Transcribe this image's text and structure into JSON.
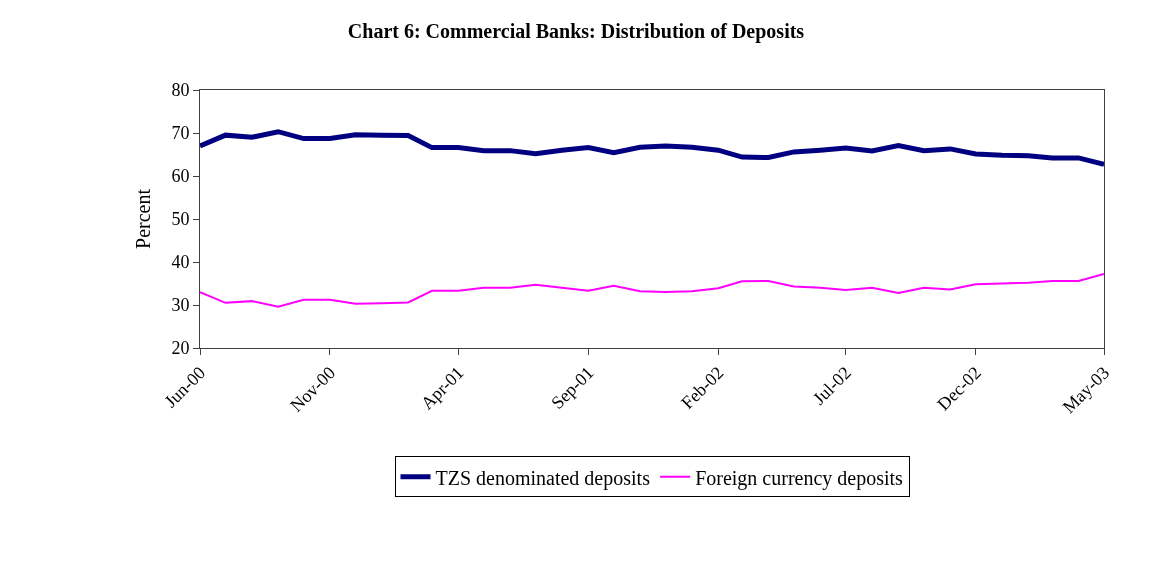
{
  "chart_data": {
    "type": "line",
    "title": "Chart 6: Commercial Banks: Distribution of Deposits",
    "ylabel": "Percent",
    "x": [
      "2000-06",
      "2000-07",
      "2000-08",
      "2000-09",
      "2000-10",
      "2000-11",
      "2000-12",
      "2001-01",
      "2001-02",
      "2001-03",
      "2001-04",
      "2001-05",
      "2001-06",
      "2001-07",
      "2001-08",
      "2001-09",
      "2001-10",
      "2001-11",
      "2001-12",
      "2002-01",
      "2002-02",
      "2002-03",
      "2002-04",
      "2002-05",
      "2002-06",
      "2002-07",
      "2002-08",
      "2002-09",
      "2002-10",
      "2002-11",
      "2002-12",
      "2003-01",
      "2003-02",
      "2003-03",
      "2003-04",
      "2003-05"
    ],
    "series": [
      {
        "name": "TZS denominated deposits",
        "color": "#000080",
        "values": [
          67,
          69.5,
          69,
          70.3,
          68.7,
          68.7,
          69.6,
          69.5,
          69.4,
          66.6,
          66.6,
          65.9,
          65.9,
          65.2,
          66,
          66.6,
          65.4,
          66.7,
          67,
          66.7,
          66,
          64.4,
          64.3,
          65.6,
          66,
          66.5,
          65.8,
          67.1,
          65.9,
          66.3,
          65.1,
          64.8,
          64.7,
          64.2,
          64.2,
          62.7
        ]
      },
      {
        "name": "Foreign currency deposits",
        "color": "#ff00ff",
        "values": [
          33,
          30.5,
          30.9,
          29.6,
          31.2,
          31.2,
          30.3,
          30.4,
          30.6,
          33.3,
          33.3,
          34,
          34,
          34.7,
          34,
          33.3,
          34.5,
          33.2,
          33,
          33.2,
          33.9,
          35.5,
          35.6,
          34.3,
          34,
          33.5,
          34,
          32.8,
          34,
          33.6,
          34.8,
          35,
          35.2,
          35.6,
          35.6,
          37.2
        ]
      }
    ],
    "xlim": [
      "2000-06",
      "2003-05"
    ],
    "xticks": [
      {
        "value": "2000-06",
        "label": "Jun-00"
      },
      {
        "value": "2000-11",
        "label": "Nov-00"
      },
      {
        "value": "2001-04",
        "label": "Apr-01"
      },
      {
        "value": "2001-09",
        "label": "Sep-01"
      },
      {
        "value": "2002-02",
        "label": "Feb-02"
      },
      {
        "value": "2002-07",
        "label": "Jul-02"
      },
      {
        "value": "2002-12",
        "label": "Dec-02"
      },
      {
        "value": "2003-05",
        "label": "May-03"
      }
    ],
    "ylim": [
      20,
      80
    ],
    "yticks": [
      20,
      30,
      40,
      50,
      60,
      70,
      80
    ],
    "grid": false,
    "legend": "bottom",
    "marker": "none",
    "line_style": "solid"
  }
}
